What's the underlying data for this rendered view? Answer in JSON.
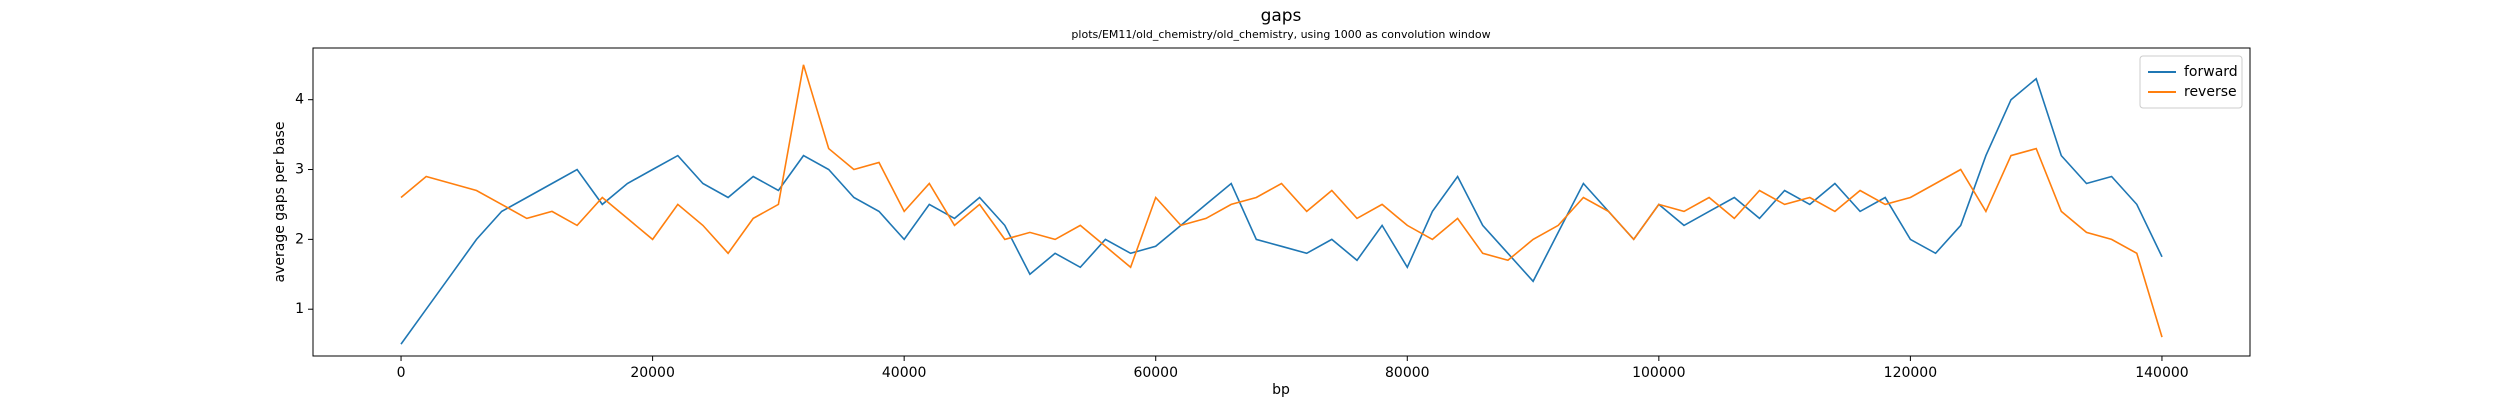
{
  "chart_data": {
    "type": "line",
    "title": "gaps",
    "subtitle": "plots/EM11/old_chemistry/old_chemistry, using 1000 as convolution window",
    "x_label": "bp",
    "y_label": "average gaps per base",
    "x": [
      0,
      2000,
      4000,
      6000,
      8000,
      10000,
      12000,
      14000,
      16000,
      18000,
      20000,
      22000,
      24000,
      26000,
      28000,
      30000,
      32000,
      34000,
      36000,
      38000,
      40000,
      42000,
      44000,
      46000,
      48000,
      50000,
      52000,
      54000,
      56000,
      58000,
      60000,
      62000,
      64000,
      66000,
      68000,
      70000,
      72000,
      74000,
      76000,
      78000,
      80000,
      82000,
      84000,
      86000,
      88000,
      90000,
      92000,
      94000,
      96000,
      98000,
      100000,
      102000,
      104000,
      106000,
      108000,
      110000,
      112000,
      114000,
      116000,
      118000,
      120000,
      122000,
      124000,
      126000,
      128000,
      130000,
      132000,
      134000,
      136000,
      138000,
      140000
    ],
    "series": [
      {
        "name": "forward",
        "color": "#1f77b4",
        "values": [
          0.5,
          1.0,
          1.5,
          2.0,
          2.4,
          2.6,
          2.8,
          3.0,
          2.5,
          2.8,
          3.0,
          3.2,
          2.8,
          2.6,
          2.9,
          2.7,
          3.2,
          3.0,
          2.6,
          2.4,
          2.0,
          2.5,
          2.3,
          2.6,
          2.2,
          1.5,
          1.8,
          1.6,
          2.0,
          1.8,
          1.9,
          2.2,
          2.5,
          2.8,
          2.0,
          1.9,
          1.8,
          2.0,
          1.7,
          2.2,
          1.6,
          2.4,
          2.9,
          2.2,
          1.8,
          1.4,
          2.1,
          2.8,
          2.4,
          2.0,
          2.5,
          2.2,
          2.4,
          2.6,
          2.3,
          2.7,
          2.5,
          2.8,
          2.4,
          2.6,
          2.0,
          1.8,
          2.2,
          3.2,
          4.0,
          4.3,
          3.2,
          2.8,
          2.9,
          2.5,
          1.75
        ]
      },
      {
        "name": "reverse",
        "color": "#ff7f0e",
        "values": [
          2.6,
          2.9,
          2.8,
          2.7,
          2.5,
          2.3,
          2.4,
          2.2,
          2.6,
          2.3,
          2.0,
          2.5,
          2.2,
          1.8,
          2.3,
          2.5,
          4.5,
          3.3,
          3.0,
          3.1,
          2.4,
          2.8,
          2.2,
          2.5,
          2.0,
          2.1,
          2.0,
          2.2,
          1.9,
          1.6,
          2.6,
          2.2,
          2.3,
          2.5,
          2.6,
          2.8,
          2.4,
          2.7,
          2.3,
          2.5,
          2.2,
          2.0,
          2.3,
          1.8,
          1.7,
          2.0,
          2.2,
          2.6,
          2.4,
          2.0,
          2.5,
          2.4,
          2.6,
          2.3,
          2.7,
          2.5,
          2.6,
          2.4,
          2.7,
          2.5,
          2.6,
          2.8,
          3.0,
          2.4,
          3.2,
          3.3,
          2.4,
          2.1,
          2.0,
          1.8,
          0.6
        ]
      }
    ],
    "xlim": [
      -7000,
      147000
    ],
    "ylim": [
      0.33,
      4.74
    ],
    "xticks": [
      0,
      20000,
      40000,
      60000,
      80000,
      100000,
      120000,
      140000
    ],
    "yticks": [
      1,
      2,
      3,
      4
    ],
    "legend": "upper right"
  }
}
